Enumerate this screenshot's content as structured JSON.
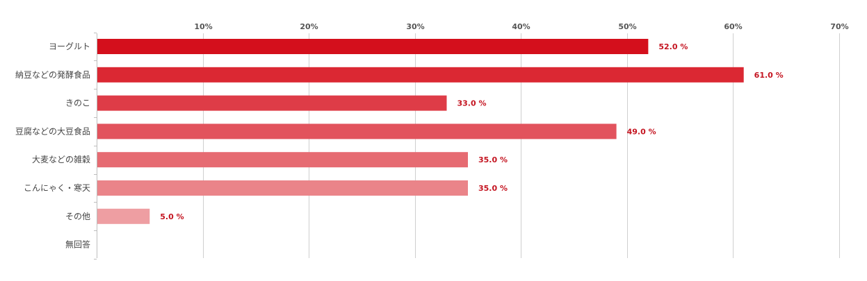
{
  "chart_data": {
    "type": "bar",
    "orientation": "horizontal",
    "categories": [
      "ヨーグルト",
      "納豆などの発酵食品",
      "きのこ",
      "豆腐などの大豆食品",
      "大麦などの雑穀",
      "こんにゃく・寒天",
      "その他",
      "無回答"
    ],
    "values": [
      52.0,
      61.0,
      33.0,
      49.0,
      35.0,
      35.0,
      5.0,
      null
    ],
    "value_labels": [
      "52.0 %",
      "61.0 %",
      "33.0 %",
      "49.0 %",
      "35.0 %",
      "35.0 %",
      "5.0 %",
      ""
    ],
    "bar_colors": [
      "#d40f1c",
      "#db2833",
      "#de3c47",
      "#e2535d",
      "#e66b72",
      "#ea8489",
      "#ee9ea2",
      "#f1b5b8"
    ],
    "value_label_color": "#c41420",
    "title": "",
    "xlabel": "",
    "ylabel": "",
    "xlim": [
      0,
      70
    ],
    "ticks": [
      {
        "value": 10,
        "label": "10%"
      },
      {
        "value": 20,
        "label": "20%"
      },
      {
        "value": 30,
        "label": "30%"
      },
      {
        "value": 40,
        "label": "40%"
      },
      {
        "value": 50,
        "label": "50%"
      },
      {
        "value": 60,
        "label": "60%"
      },
      {
        "value": 70,
        "label": "70%"
      }
    ],
    "tick_position": "top",
    "grid": true,
    "legend": "none"
  }
}
